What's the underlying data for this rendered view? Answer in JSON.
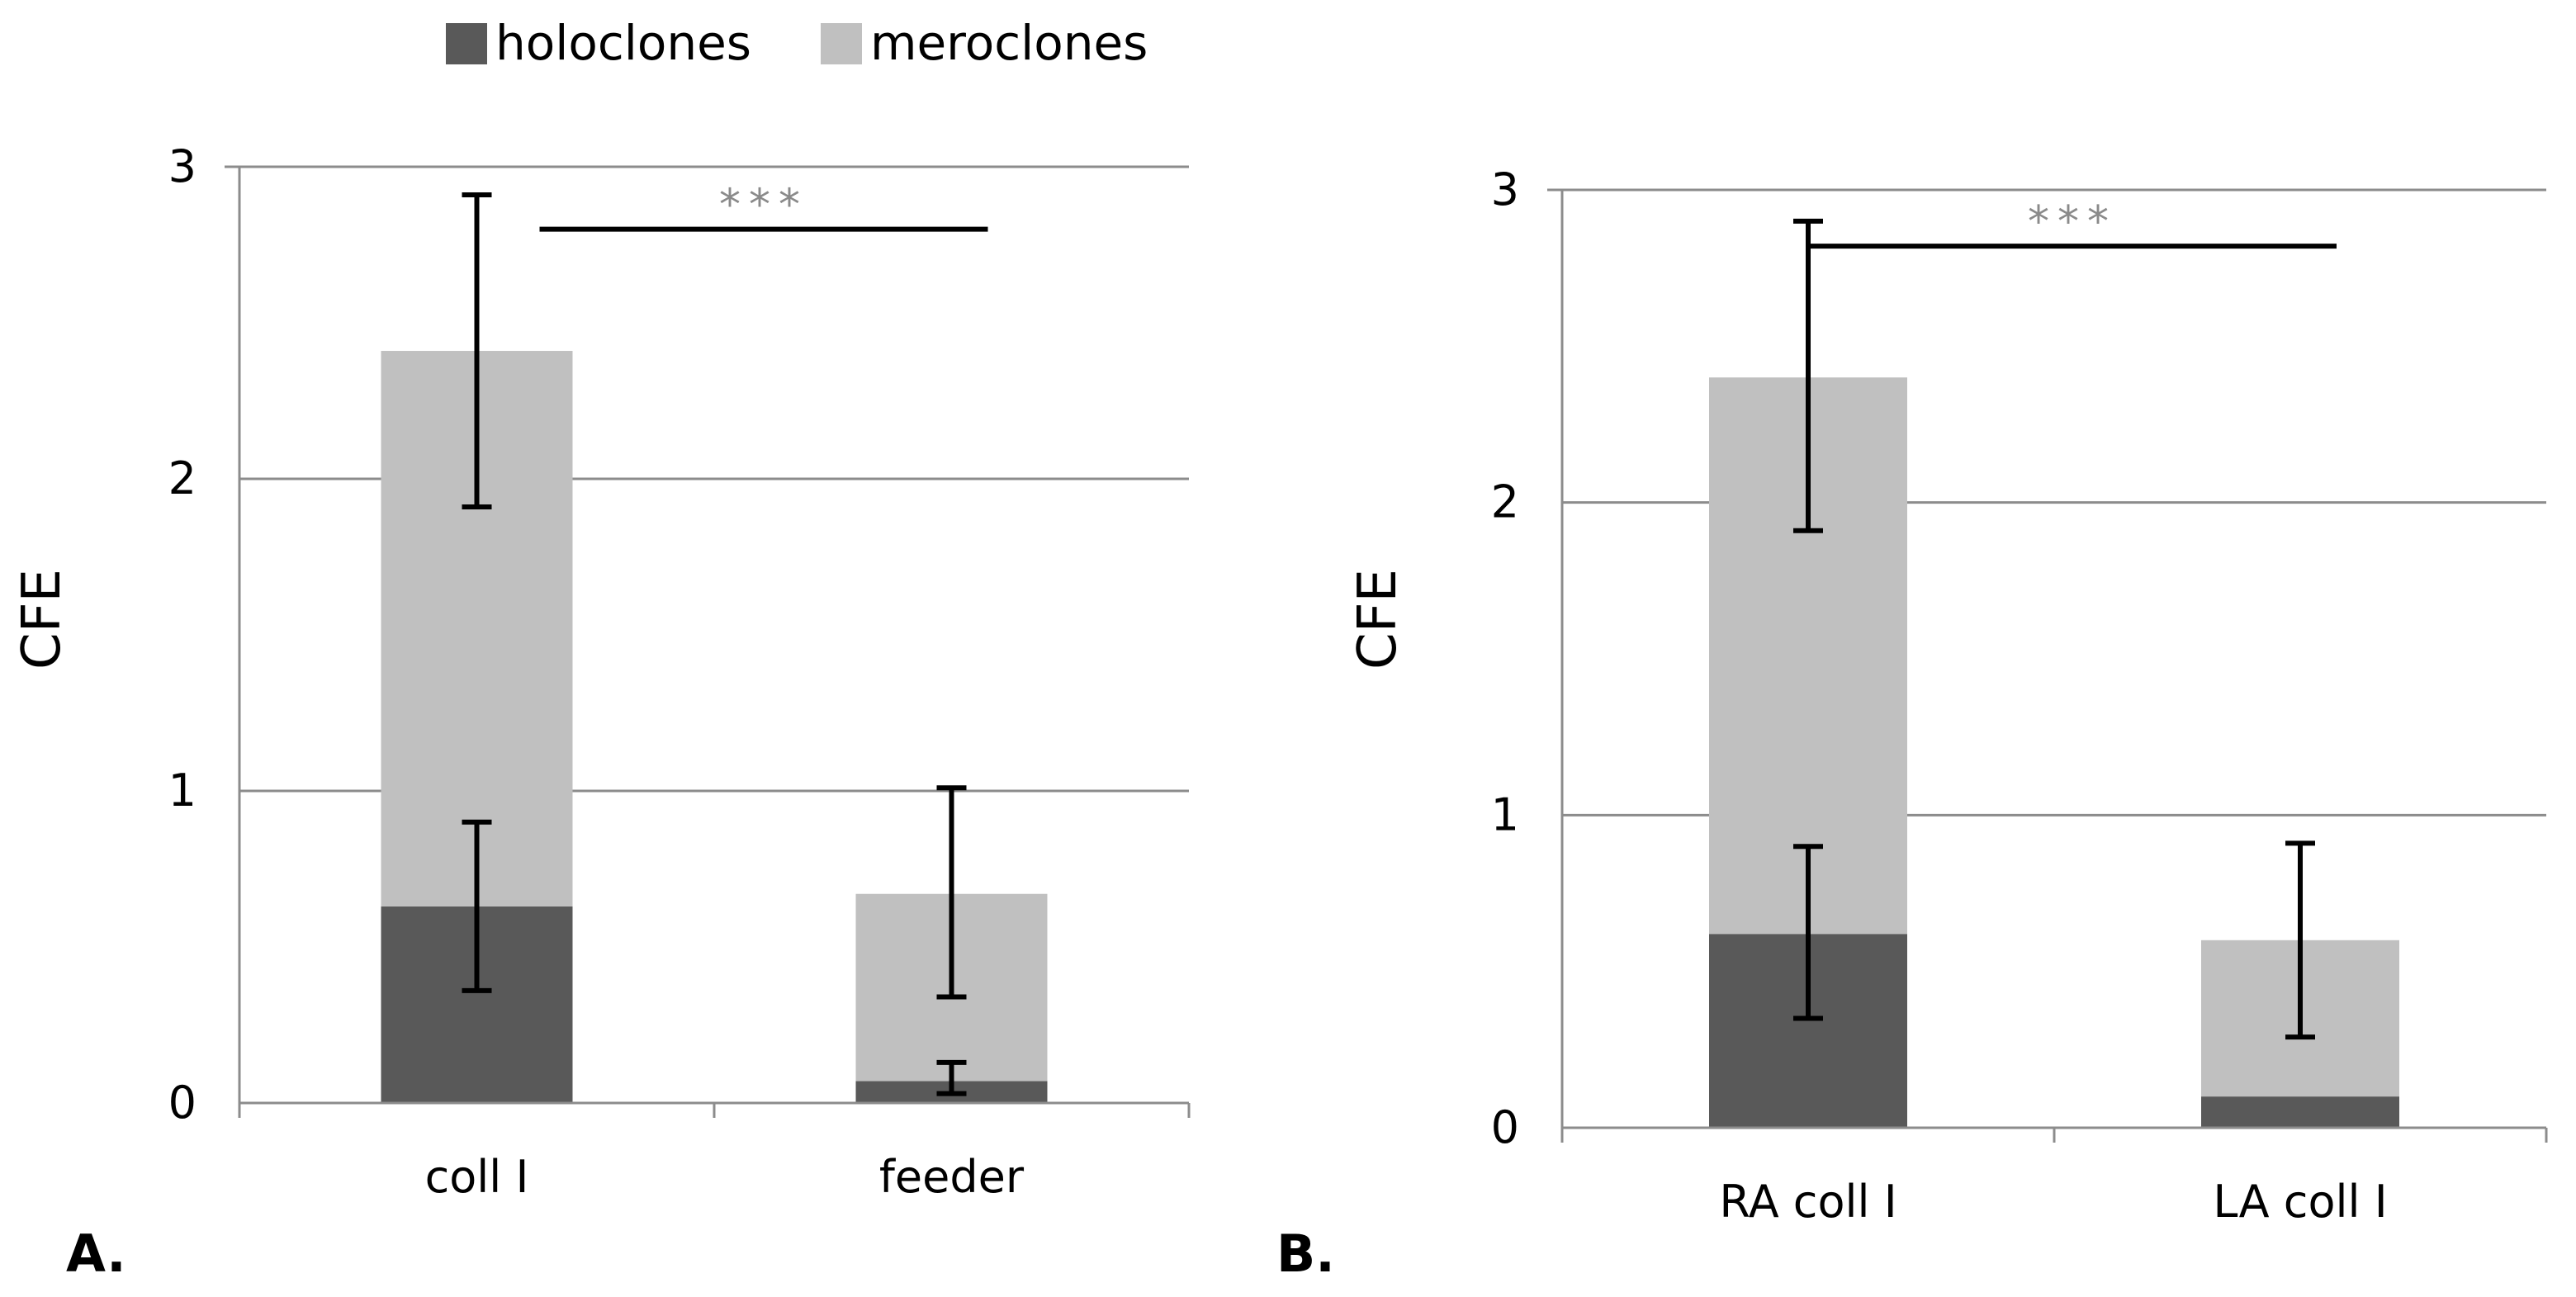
{
  "legend": {
    "items": [
      {
        "label": "holoclones",
        "color": "#595959"
      },
      {
        "label": "meroclones",
        "color": "#c0c0c0"
      }
    ]
  },
  "chart_data": [
    {
      "type": "bar",
      "stacked": true,
      "panel_label": "A.",
      "ylabel": "CFE",
      "ylim": [
        0,
        3
      ],
      "yticks": [
        "0",
        "1",
        "2",
        "3"
      ],
      "categories": [
        "coll I",
        "feeder"
      ],
      "series": [
        {
          "name": "holoclones",
          "color": "#595959",
          "values": [
            0.63,
            0.07
          ]
        },
        {
          "name": "meroclones",
          "color": "#c0c0c0",
          "values": [
            1.78,
            0.6
          ]
        }
      ],
      "error_bars": [
        {
          "category": "coll I",
          "series": "holoclones",
          "center": 0.63,
          "low": 0.36,
          "high": 0.9
        },
        {
          "category": "coll I",
          "series": "total",
          "center": 2.41,
          "low": 1.91,
          "high": 2.91
        },
        {
          "category": "feeder",
          "series": "holoclones",
          "center": 0.07,
          "low": 0.03,
          "high": 0.13
        },
        {
          "category": "feeder",
          "series": "total",
          "center": 0.67,
          "low": 0.34,
          "high": 1.01
        }
      ],
      "significance": {
        "label": "***",
        "y": 2.8,
        "from": "coll I",
        "to": "feeder"
      }
    },
    {
      "type": "bar",
      "stacked": true,
      "panel_label": "B.",
      "ylabel": "CFE",
      "ylim": [
        0,
        3
      ],
      "yticks": [
        "0",
        "1",
        "2",
        "3"
      ],
      "categories": [
        "RA coll I",
        "LA coll I"
      ],
      "series": [
        {
          "name": "holoclones",
          "color": "#595959",
          "values": [
            0.62,
            0.1
          ]
        },
        {
          "name": "meroclones",
          "color": "#c0c0c0",
          "values": [
            1.78,
            0.5
          ]
        }
      ],
      "error_bars": [
        {
          "category": "RA coll I",
          "series": "holoclones",
          "center": 0.62,
          "low": 0.35,
          "high": 0.9
        },
        {
          "category": "RA coll I",
          "series": "total",
          "center": 2.4,
          "low": 1.91,
          "high": 2.9
        },
        {
          "category": "LA coll I",
          "series": "total",
          "center": 0.6,
          "low": 0.29,
          "high": 0.91
        }
      ],
      "significance": {
        "label": "***",
        "y": 2.82,
        "from": "RA coll I",
        "to": "LA coll I"
      }
    }
  ]
}
